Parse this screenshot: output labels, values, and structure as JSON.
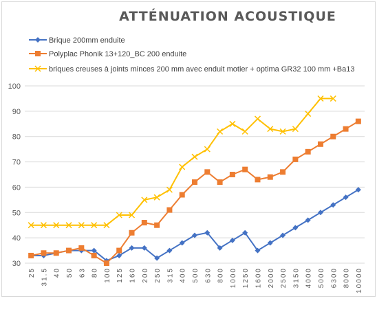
{
  "chart_data": {
    "type": "line",
    "title": "ATTÉNUATION ACOUSTIQUE",
    "xlabel": "",
    "ylabel": "",
    "ylim": [
      30,
      100
    ],
    "yticks": [
      30,
      40,
      50,
      60,
      70,
      80,
      90,
      100
    ],
    "grid": true,
    "legend_position": "top-left",
    "categories": [
      "25",
      "31.5",
      "40",
      "50",
      "63",
      "80",
      "100",
      "125",
      "160",
      "200",
      "250",
      "315",
      "400",
      "500",
      "630",
      "800",
      "1000",
      "1250",
      "1600",
      "2000",
      "2500",
      "3150",
      "4000",
      "5000",
      "6300",
      "8000",
      "10000"
    ],
    "series": [
      {
        "name": "Brique 200mm enduite",
        "color": "#4472c4",
        "marker": "diamond",
        "values": [
          33,
          33,
          34,
          35,
          35,
          35,
          31,
          33,
          36,
          36,
          32,
          35,
          38,
          41,
          42,
          36,
          39,
          42,
          35,
          38,
          41,
          44,
          47,
          50,
          53,
          56,
          59
        ]
      },
      {
        "name": "Polyplac Phonik 13+120_BC 200 enduite",
        "color": "#ed7d31",
        "marker": "square",
        "values": [
          33,
          34,
          34,
          35,
          36,
          33,
          30,
          35,
          42,
          46,
          45,
          51,
          57,
          62,
          66,
          62,
          65,
          67,
          63,
          64,
          66,
          71,
          74,
          77,
          80,
          83,
          86
        ]
      },
      {
        "name": "briques creuses à joints minces 200 mm avec enduit motier + optima GR32 100 mm +Ba13",
        "color": "#ffc000",
        "marker": "x",
        "values": [
          45,
          45,
          45,
          45,
          45,
          45,
          45,
          49,
          49,
          55,
          56,
          59,
          68,
          72,
          75,
          82,
          85,
          82,
          87,
          83,
          82,
          83,
          89,
          95,
          95,
          null,
          null
        ]
      }
    ]
  }
}
